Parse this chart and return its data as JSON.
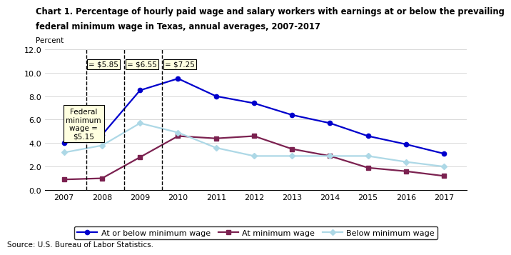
{
  "title_line1": "Chart 1. Percentage of hourly paid wage and salary workers with earnings at or below the prevailing",
  "title_line2": "federal minimum wage in Texas, annual averages, 2007-2017",
  "ylabel": "Percent",
  "source": "Source: U.S. Bureau of Labor Statistics.",
  "years": [
    2007,
    2008,
    2009,
    2010,
    2011,
    2012,
    2013,
    2014,
    2015,
    2016,
    2017
  ],
  "at_or_below": [
    4.0,
    4.7,
    8.5,
    9.5,
    8.0,
    7.4,
    6.4,
    5.7,
    4.6,
    3.9,
    3.1
  ],
  "at_minimum": [
    0.9,
    1.0,
    2.8,
    4.6,
    4.4,
    4.6,
    3.5,
    2.9,
    1.9,
    1.6,
    1.2
  ],
  "below_minimum": [
    3.2,
    3.8,
    5.7,
    4.9,
    3.6,
    2.9,
    2.9,
    2.9,
    2.9,
    2.4,
    2.0
  ],
  "color_at_or_below": "#0000CC",
  "color_at_minimum": "#7B2150",
  "color_below_minimum": "#ADD8E6",
  "ylim": [
    0.0,
    12.0
  ],
  "yticks": [
    0.0,
    2.0,
    4.0,
    6.0,
    8.0,
    10.0,
    12.0
  ],
  "vline_x": [
    2007.58,
    2008.58,
    2009.58
  ],
  "vline_labels": [
    "= $5.85",
    "= $6.55",
    "= $7.25"
  ],
  "fed_box_text": "Federal\nminimum\nwage =\n$5.15",
  "xlim_left": 2006.5,
  "xlim_right": 2017.6
}
